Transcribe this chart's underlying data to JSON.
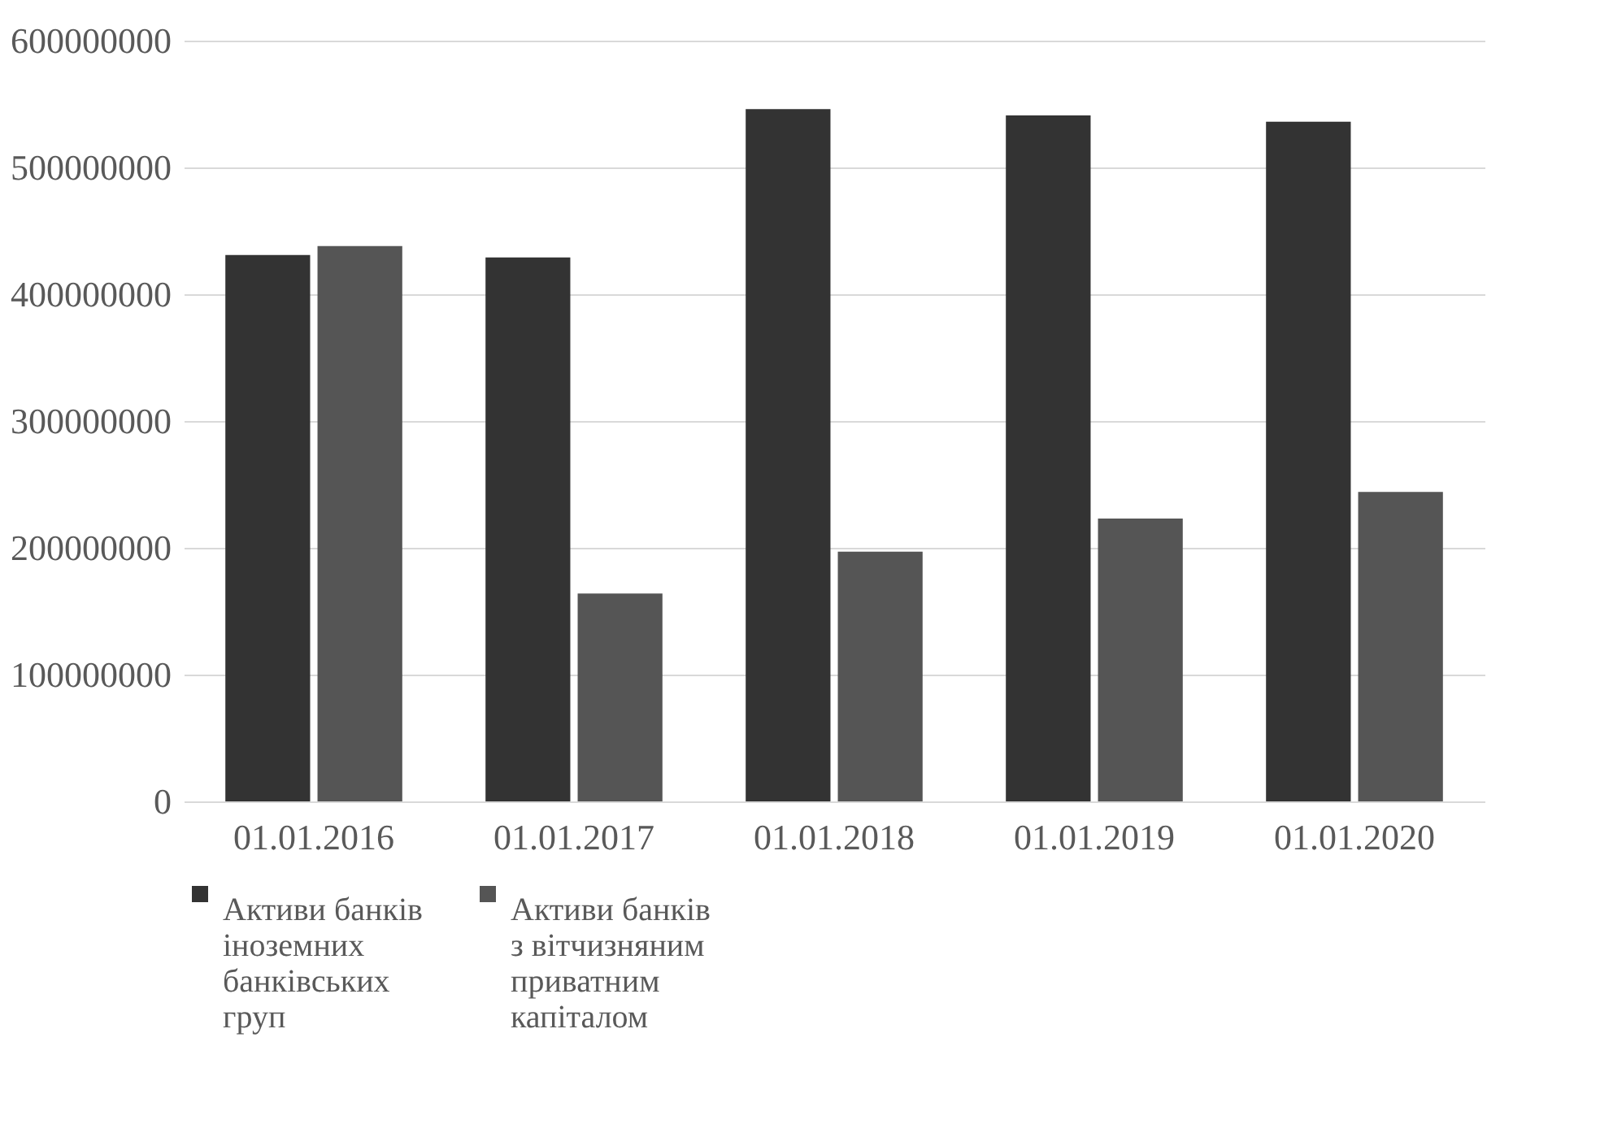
{
  "chart_data": {
    "type": "bar",
    "categories": [
      "01.01.2016",
      "01.01.2017",
      "01.01.2018",
      "01.01.2019",
      "01.01.2020"
    ],
    "series": [
      {
        "name": "Активи банків іноземних банківських груп",
        "color": "#333333",
        "values": [
          431000000,
          429000000,
          546000000,
          541000000,
          536000000
        ]
      },
      {
        "name": "Активи банків з вітчизняним приватним капіталом",
        "color": "#555555",
        "values": [
          438000000,
          164000000,
          197000000,
          223000000,
          244000000
        ]
      }
    ],
    "ylim": [
      0,
      600000000
    ],
    "yticks": [
      0,
      100000000,
      200000000,
      300000000,
      400000000,
      500000000,
      600000000
    ],
    "grid": "y",
    "legend": "bottom"
  }
}
